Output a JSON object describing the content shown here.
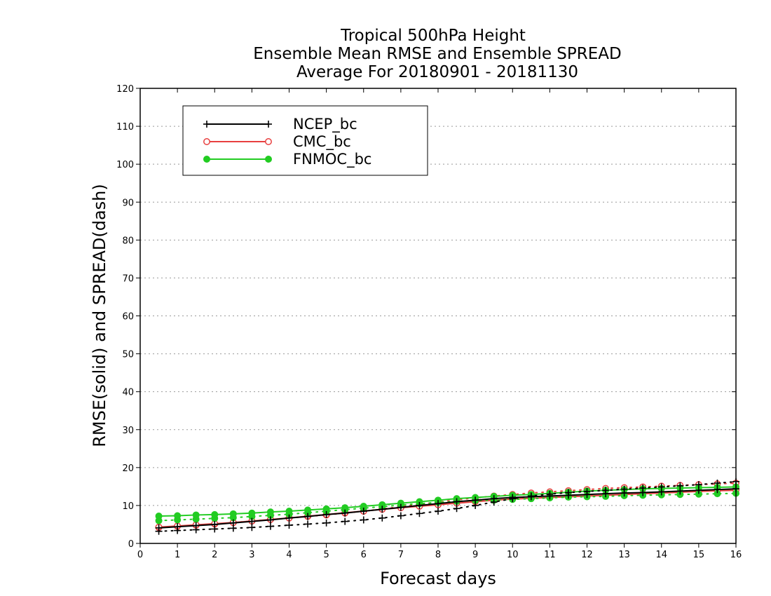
{
  "chart_data": {
    "type": "line",
    "title_lines": [
      "Tropical 500hPa Height",
      "Ensemble Mean RMSE and Ensemble SPREAD",
      "Average For 20180901 - 20181130"
    ],
    "xlabel": "Forecast days",
    "ylabel": "RMSE(solid) and SPREAD(dash)",
    "xlim": [
      0,
      16
    ],
    "ylim": [
      0,
      120
    ],
    "xticks": [
      0,
      1,
      2,
      3,
      4,
      5,
      6,
      7,
      8,
      9,
      10,
      11,
      12,
      13,
      14,
      15,
      16
    ],
    "yticks": [
      0,
      10,
      20,
      30,
      40,
      50,
      60,
      70,
      80,
      90,
      100,
      110,
      120
    ],
    "grid": true,
    "legend_position": "top-left",
    "x": [
      0.5,
      1,
      1.5,
      2,
      2.5,
      3,
      3.5,
      4,
      4.5,
      5,
      5.5,
      6,
      6.5,
      7,
      7.5,
      8,
      8.5,
      9,
      9.5,
      10,
      10.5,
      11,
      11.5,
      12,
      12.5,
      13,
      13.5,
      14,
      14.5,
      15,
      15.5,
      16
    ],
    "series": [
      {
        "name": "NCEP_bc",
        "color": "#000000",
        "marker": "plus",
        "rmse": [
          4.1,
          4.4,
          4.7,
          5.0,
          5.4,
          5.8,
          6.2,
          6.7,
          7.1,
          7.6,
          8.0,
          8.5,
          9.0,
          9.5,
          10.0,
          10.5,
          11.0,
          11.4,
          11.8,
          12.1,
          12.3,
          12.5,
          12.7,
          12.9,
          13.1,
          13.3,
          13.4,
          13.6,
          13.8,
          14.0,
          14.2,
          14.4
        ],
        "spread": [
          3.2,
          3.4,
          3.6,
          3.8,
          4.0,
          4.2,
          4.5,
          4.8,
          5.1,
          5.4,
          5.8,
          6.2,
          6.7,
          7.3,
          7.9,
          8.5,
          9.2,
          10.0,
          10.9,
          11.8,
          12.5,
          13.0,
          13.4,
          13.7,
          14.0,
          14.3,
          14.6,
          14.9,
          15.2,
          15.5,
          15.9,
          16.3
        ]
      },
      {
        "name": "CMC_bc",
        "color": "#e84040",
        "marker": "open-circle",
        "rmse": [
          4.3,
          4.6,
          4.9,
          5.2,
          5.5,
          5.9,
          6.3,
          6.7,
          7.2,
          7.6,
          8.1,
          8.5,
          9.0,
          9.4,
          9.8,
          10.2,
          10.6,
          11.0,
          11.4,
          11.7,
          11.9,
          12.1,
          12.3,
          12.5,
          12.7,
          12.9,
          13.1,
          13.3,
          13.5,
          13.7,
          13.9,
          14.0
        ],
        "spread": [
          4.2,
          4.5,
          4.8,
          5.1,
          5.5,
          5.9,
          6.3,
          6.7,
          7.1,
          7.5,
          8.0,
          8.5,
          9.1,
          9.7,
          10.3,
          10.9,
          11.5,
          12.0,
          12.5,
          12.9,
          13.3,
          13.6,
          13.9,
          14.2,
          14.5,
          14.7,
          14.9,
          15.1,
          15.3,
          15.5,
          15.7,
          15.9
        ]
      },
      {
        "name": "FNMOC_bc",
        "color": "#22cc22",
        "marker": "filled-circle",
        "rmse": [
          7.2,
          7.3,
          7.5,
          7.6,
          7.8,
          8.0,
          8.3,
          8.5,
          8.8,
          9.1,
          9.4,
          9.8,
          10.2,
          10.6,
          11.0,
          11.4,
          11.8,
          12.1,
          12.4,
          12.7,
          12.9,
          13.2,
          13.5,
          13.8,
          14.0,
          14.2,
          14.4,
          14.5,
          14.6,
          14.7,
          14.8,
          14.9
        ],
        "spread": [
          6.0,
          6.2,
          6.4,
          6.6,
          6.8,
          7.1,
          7.4,
          7.7,
          8.1,
          8.5,
          8.9,
          9.3,
          9.7,
          10.1,
          10.5,
          10.8,
          11.1,
          11.3,
          11.4,
          11.6,
          11.8,
          12.0,
          12.2,
          12.3,
          12.4,
          12.6,
          12.7,
          12.8,
          12.9,
          13.0,
          13.1,
          13.2
        ]
      }
    ]
  }
}
